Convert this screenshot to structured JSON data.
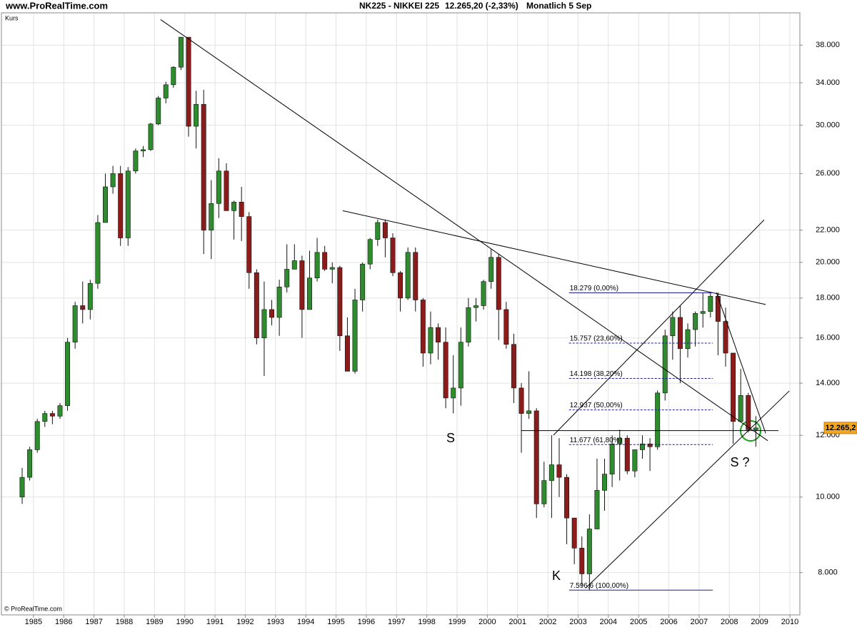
{
  "chart_data": {
    "type": "candlestick",
    "site": "www.ProRealTime.com",
    "title": "NK225 - NIKKEI 225",
    "subtitle": "12.265,20 (-2,33%)",
    "period": "Monatlich  5 Sep",
    "y_label": "Kurs",
    "copyright": "© ProRealTime.com",
    "x": [
      1984.5,
      1984.75,
      1985,
      1985.25,
      1985.5,
      1985.75,
      1986,
      1986.25,
      1986.5,
      1986.75,
      1987,
      1987.25,
      1987.5,
      1987.75,
      1988,
      1988.25,
      1988.5,
      1988.75,
      1989,
      1989.25,
      1989.5,
      1989.75,
      1990,
      1990.25,
      1990.5,
      1990.75,
      1991,
      1991.25,
      1991.5,
      1991.75,
      1992,
      1992.25,
      1992.5,
      1992.75,
      1993,
      1993.25,
      1993.5,
      1993.75,
      1994,
      1994.25,
      1994.5,
      1994.75,
      1995,
      1995.25,
      1995.5,
      1995.75,
      1996,
      1996.25,
      1996.5,
      1996.75,
      1997,
      1997.25,
      1997.5,
      1997.75,
      1998,
      1998.25,
      1998.5,
      1998.75,
      1999,
      1999.25,
      1999.5,
      1999.75,
      2000,
      2000.25,
      2000.5,
      2000.75,
      2001,
      2001.25,
      2001.5,
      2001.75,
      2002,
      2002.25,
      2002.5,
      2002.75,
      2003,
      2003.25,
      2003.5,
      2003.75,
      2004,
      2004.25,
      2004.5,
      2004.75,
      2005,
      2005.25,
      2005.5,
      2005.75,
      2006,
      2006.25,
      2006.5,
      2006.75,
      2007,
      2007.25,
      2007.5,
      2007.75,
      2008,
      2008.25,
      2008.5,
      2008.75
    ],
    "open": [
      10000,
      10600,
      11500,
      12500,
      12800,
      12700,
      13100,
      15800,
      17600,
      17400,
      18800,
      22500,
      25000,
      26000,
      21500,
      26200,
      27800,
      27900,
      30100,
      32500,
      33800,
      35600,
      38900,
      29900,
      31900,
      22000,
      23800,
      26200,
      23300,
      23900,
      22900,
      19400,
      16000,
      17400,
      17000,
      18600,
      19600,
      20100,
      17400,
      19100,
      20600,
      19600,
      19700,
      16100,
      14500,
      17900,
      19900,
      21400,
      22500,
      21500,
      19400,
      18000,
      20600,
      17900,
      15300,
      16500,
      15800,
      13400,
      13800,
      15800,
      17500,
      17600,
      18900,
      20300,
      17400,
      15700,
      13800,
      12800,
      12900,
      9800,
      10500,
      11000,
      10600,
      9400,
      8600,
      7970,
      9100,
      10200,
      10700,
      11700,
      11900,
      10800,
      11500,
      11700,
      11600,
      13600,
      16100,
      17000,
      15500,
      16400,
      17200,
      17300,
      18100,
      16800,
      15300,
      12500,
      13500,
      12200
    ],
    "high": [
      10900,
      11600,
      12600,
      12900,
      12900,
      13200,
      16000,
      17800,
      18900,
      19000,
      23000,
      26000,
      26600,
      26600,
      26500,
      28000,
      28200,
      30200,
      32700,
      34100,
      35700,
      38900,
      38900,
      33200,
      33300,
      25500,
      27200,
      26800,
      24000,
      25000,
      23200,
      19600,
      18900,
      17900,
      19000,
      21100,
      21100,
      20400,
      20700,
      21500,
      21000,
      20000,
      19800,
      17000,
      18500,
      20000,
      21500,
      22700,
      22700,
      21800,
      19500,
      20900,
      20900,
      18000,
      17300,
      16700,
      16500,
      15200,
      16500,
      18000,
      18000,
      19000,
      20800,
      20500,
      17800,
      16200,
      14000,
      14500,
      13000,
      11100,
      12000,
      11900,
      10700,
      9400,
      8900,
      9500,
      11200,
      11200,
      12000,
      12200,
      12000,
      11500,
      12000,
      11900,
      13700,
      16400,
      17300,
      17600,
      16700,
      17300,
      18300,
      18300,
      18300,
      17500,
      15300,
      14600,
      13600,
      12700
    ],
    "low": [
      9800,
      10500,
      11400,
      12300,
      12400,
      12600,
      12900,
      15500,
      16700,
      16900,
      18500,
      22500,
      24500,
      21000,
      21000,
      26000,
      27300,
      27800,
      30000,
      32000,
      33500,
      35300,
      29000,
      28000,
      20500,
      20200,
      22800,
      23500,
      21400,
      21300,
      18500,
      15700,
      14300,
      16600,
      16100,
      18300,
      19600,
      16000,
      17400,
      18900,
      19500,
      18800,
      15400,
      14500,
      14400,
      17300,
      19600,
      21000,
      20300,
      19200,
      17300,
      17900,
      17300,
      14700,
      14800,
      15000,
      13000,
      12800,
      13100,
      15600,
      16800,
      17400,
      18500,
      15900,
      15500,
      13200,
      11400,
      12600,
      9400,
      9700,
      9400,
      10000,
      8700,
      8200,
      7700,
      7600,
      9100,
      9600,
      10300,
      10500,
      10700,
      10600,
      11200,
      10800,
      11500,
      13300,
      15000,
      14000,
      15100,
      15600,
      16500,
      17000,
      15200,
      14700,
      11700,
      12500,
      12100,
      11600
    ],
    "close": [
      10600,
      11500,
      12500,
      12800,
      12700,
      13100,
      15800,
      17600,
      17400,
      18800,
      22500,
      25000,
      26000,
      21500,
      26200,
      27800,
      27900,
      30100,
      32500,
      33800,
      35600,
      38900,
      29900,
      31900,
      22000,
      23800,
      26200,
      23300,
      23900,
      22900,
      19400,
      16000,
      17400,
      17000,
      18600,
      19600,
      20100,
      17400,
      19100,
      20600,
      19600,
      19700,
      16100,
      14500,
      17900,
      19900,
      21400,
      22500,
      21500,
      19400,
      18000,
      20600,
      17900,
      15300,
      16500,
      15800,
      13400,
      13800,
      15800,
      17500,
      17600,
      18900,
      20300,
      17400,
      15700,
      13800,
      12800,
      12900,
      9800,
      10500,
      11000,
      10600,
      9400,
      8600,
      7970,
      9100,
      10200,
      10700,
      11700,
      11900,
      10800,
      11500,
      11700,
      11600,
      13600,
      16100,
      17000,
      15500,
      16400,
      17200,
      17300,
      18100,
      16800,
      15300,
      12500,
      13500,
      12200,
      12265.2
    ],
    "up_color": "#2e8b2e",
    "down_color": "#8b1c1c",
    "log_scale": true,
    "grid": true,
    "ylim": [
      7060,
      41800
    ],
    "yticks": [
      {
        "value": 8000,
        "label": "8.000"
      },
      {
        "value": 10000,
        "label": "10.000"
      },
      {
        "value": 12000,
        "label": "12.000"
      },
      {
        "value": 14000,
        "label": "14.000"
      },
      {
        "value": 16000,
        "label": "16.000"
      },
      {
        "value": 18000,
        "label": "18.000"
      },
      {
        "value": 20000,
        "label": "20.000"
      },
      {
        "value": 22000,
        "label": "22.000"
      },
      {
        "value": 26000,
        "label": "26.000"
      },
      {
        "value": 30000,
        "label": "30.000"
      },
      {
        "value": 34000,
        "label": "34.000"
      },
      {
        "value": 38000,
        "label": "38.000"
      }
    ],
    "xlim": [
      1983.94,
      2010.33
    ],
    "xticks": [
      1985,
      1986,
      1987,
      1988,
      1989,
      1990,
      1991,
      1992,
      1993,
      1994,
      1995,
      1996,
      1997,
      1998,
      1999,
      2000,
      2001,
      2002,
      2003,
      2004,
      2005,
      2006,
      2007,
      2008,
      2009,
      2010
    ],
    "last_price": {
      "value": 12265.2,
      "label": "12.265,2"
    },
    "fib_x": [
      2002.7,
      2007.45
    ],
    "fib_levels": [
      {
        "value": 18279,
        "label": "18.279 (0,00%)"
      },
      {
        "value": 15757,
        "label": "15.757 (23,60%)"
      },
      {
        "value": 14198,
        "label": "14.198 (38,20%)"
      },
      {
        "value": 12937,
        "label": "12.937 (50,00%)"
      },
      {
        "value": 11677,
        "label": "11.677 (61,80%)"
      },
      {
        "value": 7596.6,
        "label": "7.596,6 (100,00%)"
      }
    ],
    "trendlines": [
      {
        "x": [
          1989.2,
          2009.27
        ],
        "y": [
          40980,
          11810
        ]
      },
      {
        "x": [
          1995.22,
          2009.2
        ],
        "y": [
          23300,
          17660
        ]
      },
      {
        "x": [
          2002.19,
          2009.15
        ],
        "y": [
          12010,
          22680
        ]
      },
      {
        "x": [
          2003.25,
          2009.98
        ],
        "y": [
          7640,
          13680
        ]
      },
      {
        "x": [
          2007.57,
          2009.2
        ],
        "y": [
          18300,
          12070
        ]
      },
      {
        "x": [
          2001.12,
          2009.62
        ],
        "y": [
          12170,
          12170
        ]
      }
    ],
    "annotations": [
      "S",
      "K",
      "S ?"
    ]
  }
}
